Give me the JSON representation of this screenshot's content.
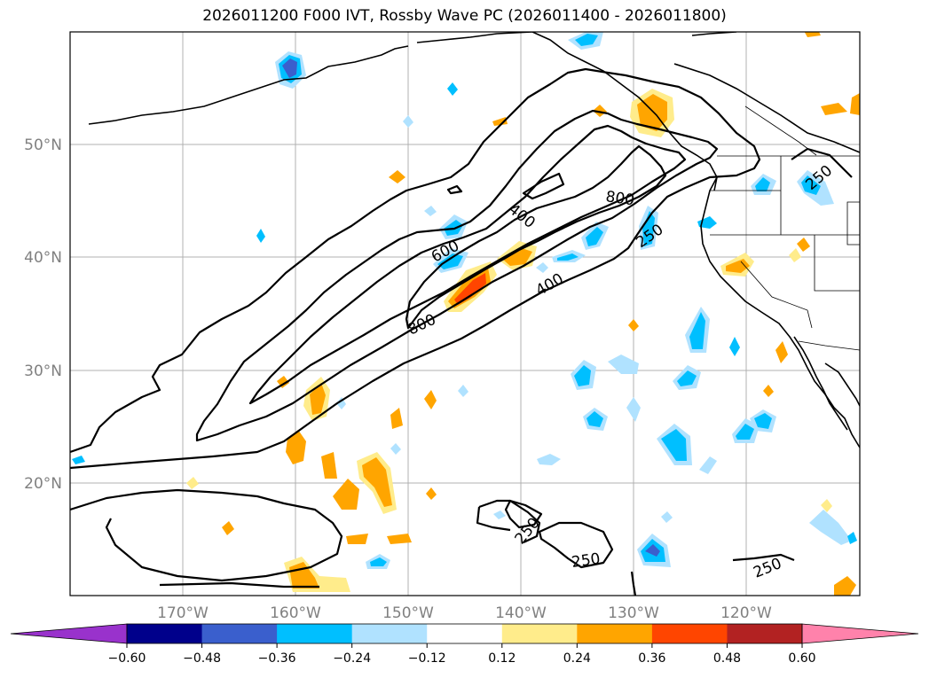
{
  "title": "2026011200 F000 IVT, Rossby Wave PC (2026011400 - 2026011800)",
  "map": {
    "lon_range": [
      -180,
      -110
    ],
    "lat_range": [
      10,
      60
    ],
    "lat_labels": [
      "20°N",
      "30°N",
      "40°N",
      "50°N"
    ],
    "lon_labels": [
      "170°W",
      "160°W",
      "150°W",
      "140°W",
      "130°W",
      "120°W"
    ],
    "grid": true,
    "contour_labels": [
      "250",
      "400",
      "600",
      "800"
    ],
    "contour_levels": [
      250,
      400,
      600,
      800
    ],
    "colors": {
      "contour": "#000000",
      "grid": "#b0b0b0",
      "coastline": "#000000",
      "label": "#808080"
    }
  },
  "colorbar": {
    "ticks": [
      "−0.60",
      "−0.48",
      "−0.36",
      "−0.24",
      "−0.12",
      "0.12",
      "0.24",
      "0.36",
      "0.48",
      "0.60"
    ],
    "colors": [
      "#9932cc",
      "#00008b",
      "#3a5fcd",
      "#00bfff",
      "#b0e2ff",
      "#ffffff",
      "#ffec8b",
      "#ffa500",
      "#ff4500",
      "#b22222",
      "#ff82ab"
    ],
    "extend": "both"
  }
}
